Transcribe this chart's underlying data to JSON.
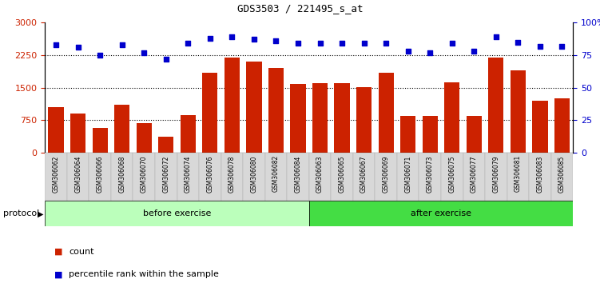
{
  "title": "GDS3503 / 221495_s_at",
  "samples": [
    "GSM306062",
    "GSM306064",
    "GSM306066",
    "GSM306068",
    "GSM306070",
    "GSM306072",
    "GSM306074",
    "GSM306076",
    "GSM306078",
    "GSM306080",
    "GSM306082",
    "GSM306084",
    "GSM306063",
    "GSM306065",
    "GSM306067",
    "GSM306069",
    "GSM306071",
    "GSM306073",
    "GSM306075",
    "GSM306077",
    "GSM306079",
    "GSM306081",
    "GSM306083",
    "GSM306085"
  ],
  "counts": [
    1050,
    900,
    580,
    1100,
    680,
    380,
    870,
    1850,
    2200,
    2100,
    1950,
    1580,
    1600,
    1600,
    1520,
    1850,
    850,
    850,
    1620,
    850,
    2200,
    1900,
    1200,
    1250
  ],
  "percentiles": [
    83,
    81,
    75,
    83,
    77,
    72,
    84,
    88,
    89,
    87,
    86,
    84,
    84,
    84,
    84,
    84,
    78,
    77,
    84,
    78,
    89,
    85,
    82,
    82
  ],
  "before_count": 12,
  "after_count": 12,
  "bar_color": "#cc2200",
  "dot_color": "#0000cc",
  "before_color": "#bbffbb",
  "after_color": "#44dd44",
  "bg_color": "#ffffff",
  "ylim_left": [
    0,
    3000
  ],
  "ylim_right": [
    0,
    100
  ],
  "yticks_left": [
    0,
    750,
    1500,
    2250,
    3000
  ],
  "yticks_right": [
    0,
    25,
    50,
    75,
    100
  ],
  "grid_vals": [
    750,
    1500,
    2250
  ],
  "protocol_label": "protocol",
  "before_label": "before exercise",
  "after_label": "after exercise",
  "legend_count_label": "count",
  "legend_pct_label": "percentile rank within the sample"
}
